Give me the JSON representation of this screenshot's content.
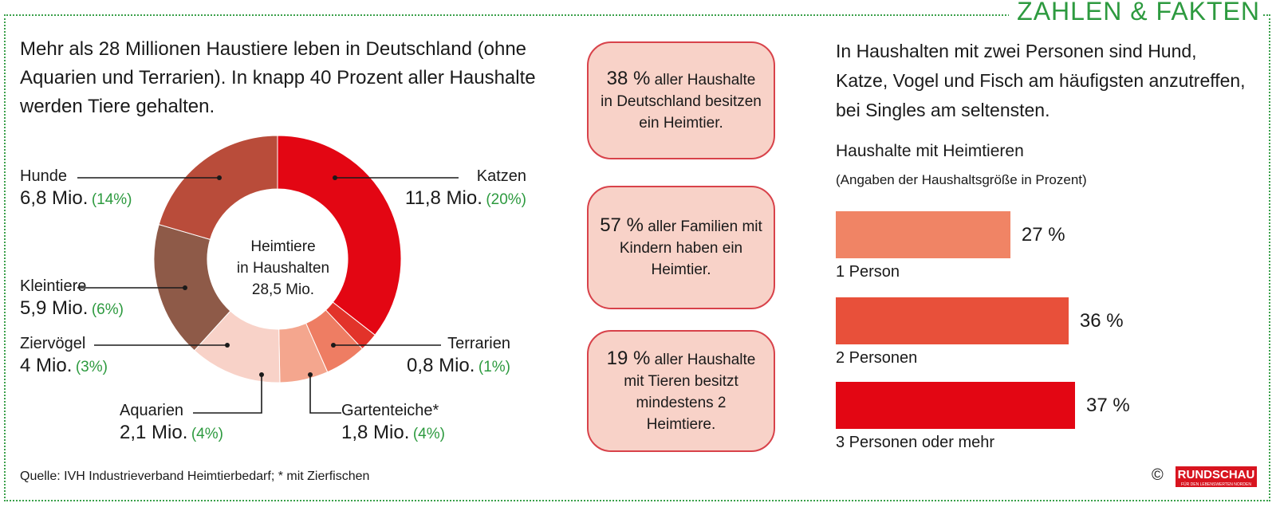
{
  "brand": "ZAHLEN & FAKTEN",
  "intro": "Mehr als 28 Millionen Haustiere leben in Deutschland (ohne Aquarien und Terrarien). In knapp 40 Prozent aller Haushalte werden Tiere gehalten.",
  "donut_center": [
    "Heimtiere",
    "in Haushalten",
    "28,5 Mio."
  ],
  "facts": [
    {
      "pct": "38 %",
      "text": "aller Haushalte in Deutschland besitzen ein Heimtier."
    },
    {
      "pct": "57 %",
      "text": "aller Familien mit Kindern haben ein Heimtier."
    },
    {
      "pct": "19 %",
      "text": "aller Haushalte mit Tieren besitzt mindestens 2 Heimtiere."
    }
  ],
  "right_text": "In Haushalten mit zwei Personen sind Hund, Katze, Vogel und Fisch am häufigsten anzutreffen, bei Singles am seltensten.",
  "source": "Quelle: IVH Industrieverband Heimtierbedarf; * mit Zierfischen",
  "copyright": "©",
  "logo": {
    "name": "RUNDSCHAU",
    "tagline": "FÜR DEN LEBENSWERTEN NORDEN"
  },
  "colors": {
    "green": "#2d9a3f",
    "red": "#e30613",
    "box_fill": "#f8d2c8"
  },
  "chart_data": [
    {
      "type": "pie",
      "title": "",
      "slices": [
        {
          "name": "Katzen",
          "value": 11.8,
          "value_label": "11,8 Mio.",
          "pct_label": "(20%)",
          "color": "#e30613"
        },
        {
          "name": "Terrarien",
          "value": 0.8,
          "value_label": "0,8 Mio.",
          "pct_label": "(1%)",
          "color": "#e2332a"
        },
        {
          "name": "Gartenteiche*",
          "value": 1.8,
          "value_label": "1,8 Mio.",
          "pct_label": "(4%)",
          "color": "#ee7d63"
        },
        {
          "name": "Aquarien",
          "value": 2.1,
          "value_label": "2,1 Mio.",
          "pct_label": "(4%)",
          "color": "#f4a68e"
        },
        {
          "name": "Ziervögel",
          "value": 4,
          "value_label": "4 Mio.",
          "pct_label": "(3%)",
          "color": "#f8d2c8"
        },
        {
          "name": "Kleintiere",
          "value": 5.9,
          "value_label": "5,9 Mio.",
          "pct_label": "(6%)",
          "color": "#8e5a48"
        },
        {
          "name": "Hunde",
          "value": 6.8,
          "value_label": "6,8 Mio.",
          "pct_label": "(14%)",
          "color": "#b94c3a"
        }
      ],
      "center_label": "Heimtiere in Haushalten 28,5 Mio."
    },
    {
      "type": "bar",
      "title": "Haushalte mit Heimtieren",
      "subtitle": "(Angaben der Haushaltsgröße in Prozent)",
      "categories": [
        "1 Person",
        "2 Personen",
        "3 Personen oder mehr"
      ],
      "values": [
        27,
        36,
        37
      ],
      "value_labels": [
        "27 %",
        "36 %",
        "37 %"
      ],
      "colors": [
        "#f08465",
        "#e8503a",
        "#e30613"
      ],
      "ylim": [
        0,
        37
      ]
    }
  ]
}
